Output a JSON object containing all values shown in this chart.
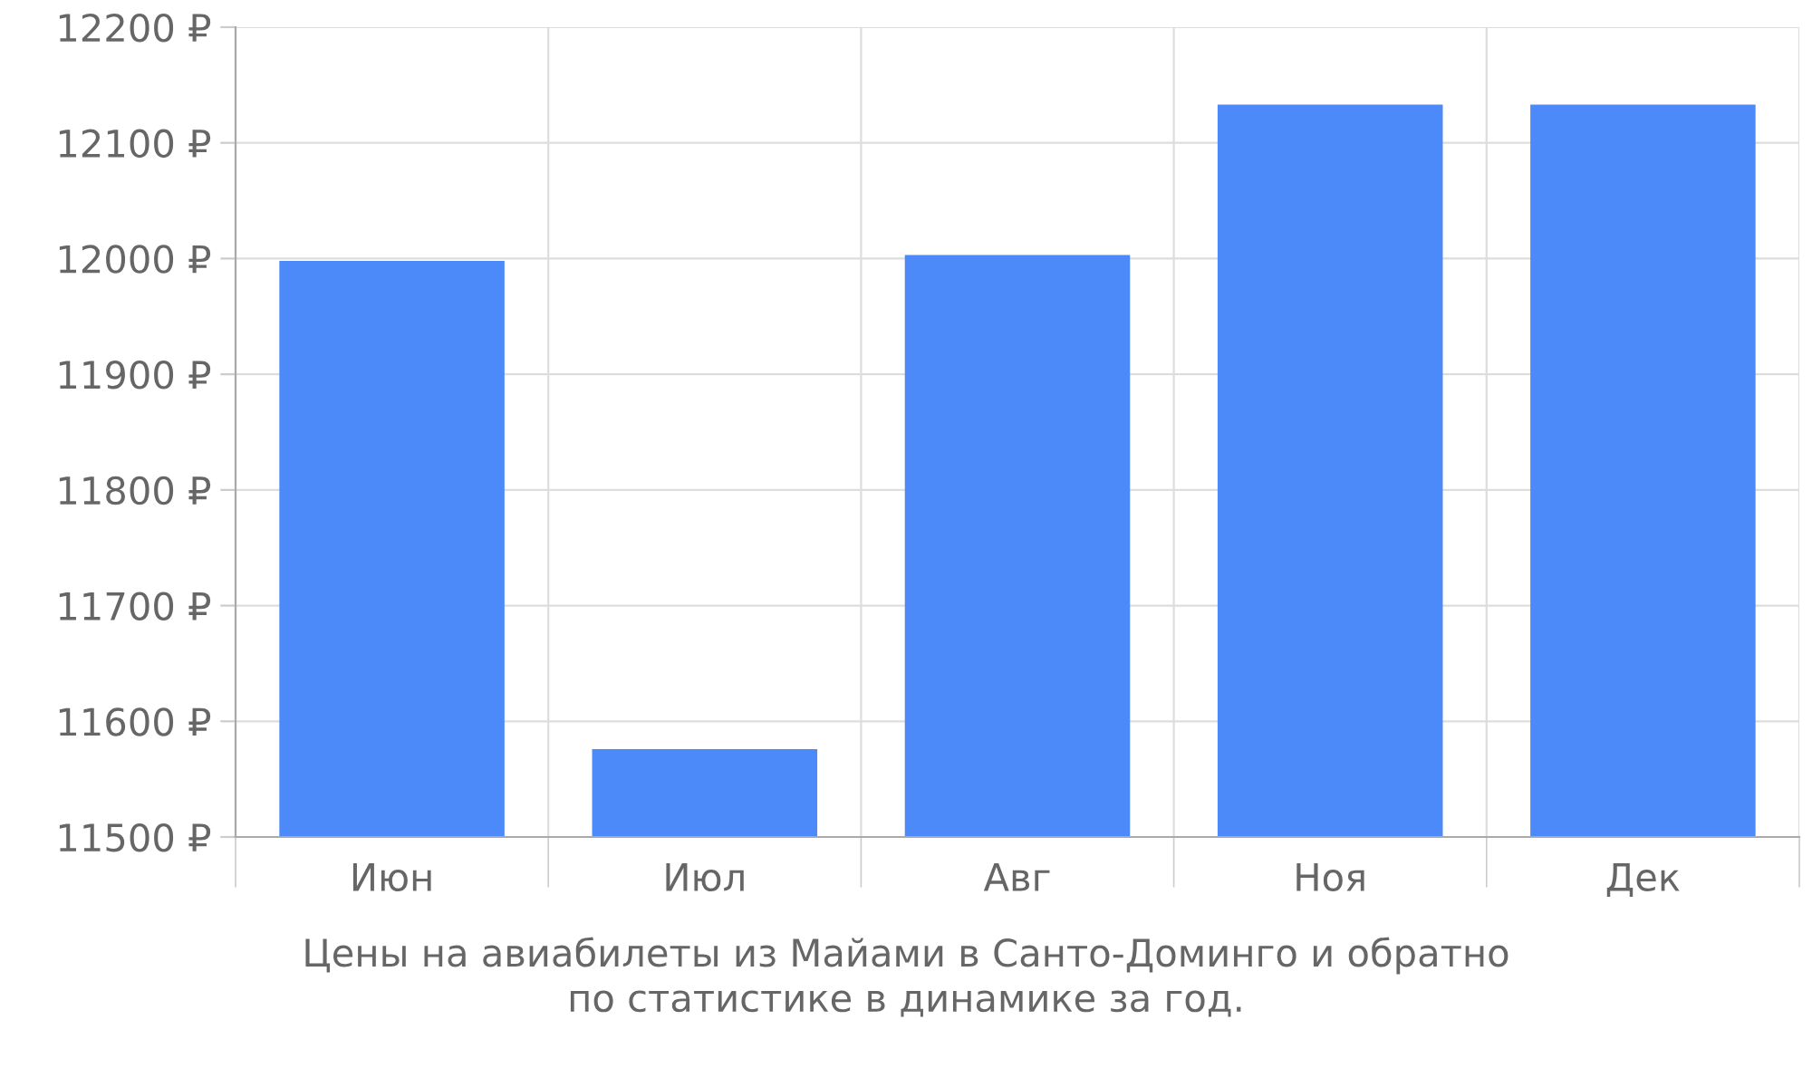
{
  "chart_data": {
    "type": "bar",
    "categories": [
      "Июн",
      "Июл",
      "Авг",
      "Ноя",
      "Дек"
    ],
    "values": [
      11998,
      11576,
      12003,
      12133,
      12133
    ],
    "color": "#4d8af9",
    "ylim": [
      11500,
      12200
    ],
    "yticks": [
      {
        "value": 11500,
        "label": "11500 ₽"
      },
      {
        "value": 11600,
        "label": "11600 ₽"
      },
      {
        "value": 11700,
        "label": "11700 ₽"
      },
      {
        "value": 11800,
        "label": "11800 ₽"
      },
      {
        "value": 11900,
        "label": "11900 ₽"
      },
      {
        "value": 12000,
        "label": "12000 ₽"
      },
      {
        "value": 12100,
        "label": "12100 ₽"
      },
      {
        "value": 12200,
        "label": "12200 ₽"
      }
    ],
    "grid": true,
    "annotations": [
      "Цены на авиабилеты из Майами в Санто-Доминго и обратно\nпо статистике в динамике за год."
    ]
  }
}
